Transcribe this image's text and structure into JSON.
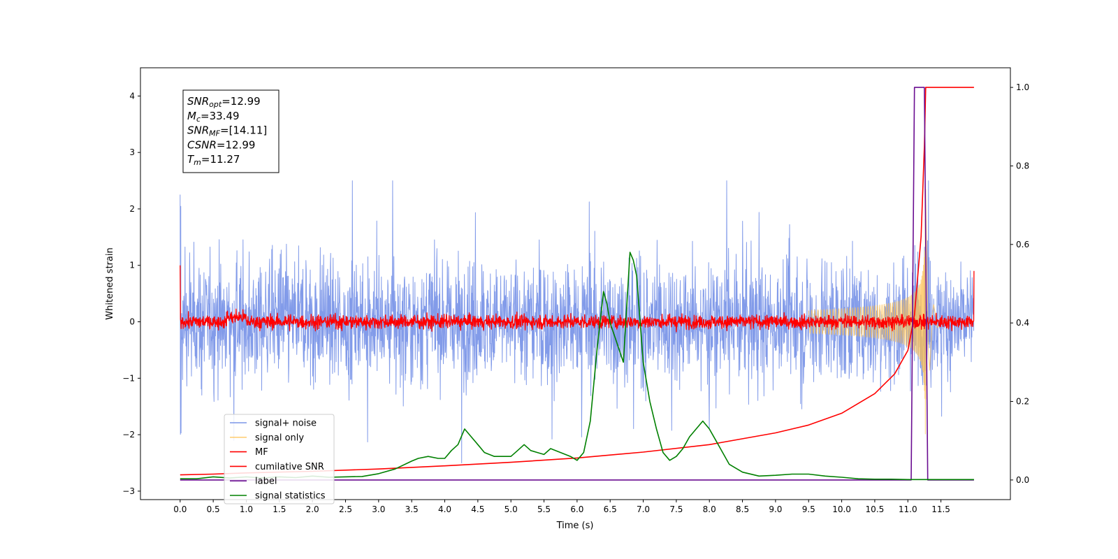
{
  "chart_data": {
    "type": "line",
    "xlabel": "Time (s)",
    "ylabel": "Whitened strain",
    "xlim": [
      -0.6,
      12.55
    ],
    "ylim": [
      -3.15,
      4.5
    ],
    "y2lim": [
      -0.05,
      1.05
    ],
    "x_ticks": [
      "0.0",
      "0.5",
      "1.0",
      "1.5",
      "2.0",
      "2.5",
      "3.0",
      "3.5",
      "4.0",
      "4.5",
      "5.0",
      "5.5",
      "6.0",
      "6.5",
      "7.0",
      "7.5",
      "8.0",
      "8.5",
      "9.0",
      "9.5",
      "10.0",
      "10.5",
      "11.0",
      "11.5"
    ],
    "y_ticks": [
      "4",
      "3",
      "2",
      "1",
      "0",
      "−1",
      "−2",
      "−3"
    ],
    "y2_ticks": [
      "1.0",
      "0.8",
      "0.6",
      "0.4",
      "0.2",
      "0.0"
    ],
    "grid": false,
    "legend_position": "lower-left",
    "annotation": {
      "lines": [
        {
          "sym": "SNR",
          "sub": "opt",
          "val": "=12.99"
        },
        {
          "sym": "M",
          "sub": "c",
          "val": "=33.49"
        },
        {
          "sym": "SNR",
          "sub": "MF",
          "val": "=[14.11]"
        },
        {
          "sym": "CSNR",
          "sub": "",
          "val": "=12.99"
        },
        {
          "sym": "T",
          "sub": "m",
          "val": "=11.27"
        }
      ]
    },
    "series": [
      {
        "name": "signal+ noise",
        "color": "#7b96e8",
        "axis": "left",
        "kind": "noise",
        "t_range": [
          0,
          12
        ],
        "std": 0.62,
        "spikes_max": 2.5
      },
      {
        "name": "signal only",
        "color": "#ffc04d",
        "axis": "left",
        "kind": "chirp",
        "t_range": [
          0,
          12
        ],
        "merger_time": 11.27,
        "peak_amplitude": 2.35
      },
      {
        "name": "MF",
        "color": "#ff0000",
        "axis": "left",
        "kind": "mf_noise",
        "t_range": [
          0,
          12
        ],
        "std": 0.06,
        "start_value": 1.0,
        "end_value": 0.9
      },
      {
        "name": "cumilative SNR",
        "color": "#ff0000",
        "axis": "right",
        "x": [
          0.0,
          0.5,
          1.0,
          2.0,
          3.0,
          4.0,
          5.0,
          6.0,
          7.0,
          8.0,
          9.0,
          9.5,
          10.0,
          10.5,
          10.8,
          11.0,
          11.1,
          11.2,
          11.25,
          11.27,
          11.3,
          12.0
        ],
        "y": [
          0.013,
          0.015,
          0.018,
          0.022,
          0.028,
          0.036,
          0.045,
          0.056,
          0.071,
          0.09,
          0.12,
          0.14,
          0.17,
          0.22,
          0.27,
          0.33,
          0.42,
          0.62,
          0.85,
          1.0,
          1.0,
          1.0
        ]
      },
      {
        "name": "label",
        "color": "#6a0d91",
        "axis": "right",
        "x": [
          0.0,
          11.05,
          11.1,
          11.25,
          11.3,
          12.0
        ],
        "y": [
          0.0,
          0.0,
          1.0,
          1.0,
          0.0,
          0.0
        ]
      },
      {
        "name": "signal statistics",
        "color": "#008000",
        "axis": "right",
        "x": [
          0.0,
          0.25,
          0.5,
          0.75,
          1.0,
          1.25,
          1.5,
          1.75,
          2.0,
          2.25,
          2.5,
          2.75,
          3.0,
          3.25,
          3.5,
          3.6,
          3.75,
          3.9,
          4.0,
          4.1,
          4.2,
          4.3,
          4.4,
          4.5,
          4.6,
          4.75,
          5.0,
          5.1,
          5.2,
          5.3,
          5.4,
          5.5,
          5.6,
          5.75,
          5.9,
          6.0,
          6.1,
          6.2,
          6.3,
          6.4,
          6.45,
          6.5,
          6.6,
          6.7,
          6.8,
          6.85,
          6.9,
          7.0,
          7.1,
          7.2,
          7.3,
          7.4,
          7.5,
          7.6,
          7.7,
          7.8,
          7.9,
          8.0,
          8.1,
          8.2,
          8.3,
          8.5,
          8.75,
          9.0,
          9.25,
          9.5,
          9.75,
          10.0,
          10.25,
          10.5,
          10.75,
          11.0,
          11.25,
          11.5,
          11.75,
          12.0
        ],
        "y": [
          0.003,
          0.003,
          0.008,
          0.005,
          0.008,
          0.005,
          0.008,
          0.006,
          0.01,
          0.007,
          0.008,
          0.009,
          0.016,
          0.028,
          0.048,
          0.055,
          0.06,
          0.055,
          0.055,
          0.075,
          0.09,
          0.13,
          0.11,
          0.09,
          0.07,
          0.06,
          0.06,
          0.075,
          0.09,
          0.075,
          0.07,
          0.065,
          0.08,
          0.07,
          0.06,
          0.05,
          0.07,
          0.15,
          0.33,
          0.48,
          0.45,
          0.4,
          0.35,
          0.3,
          0.58,
          0.56,
          0.52,
          0.3,
          0.2,
          0.13,
          0.07,
          0.05,
          0.06,
          0.08,
          0.11,
          0.13,
          0.15,
          0.13,
          0.1,
          0.07,
          0.04,
          0.02,
          0.01,
          0.012,
          0.015,
          0.015,
          0.01,
          0.007,
          0.003,
          0.002,
          0.002,
          0.001,
          0.001,
          0.001,
          0.001,
          0.001
        ]
      }
    ]
  }
}
